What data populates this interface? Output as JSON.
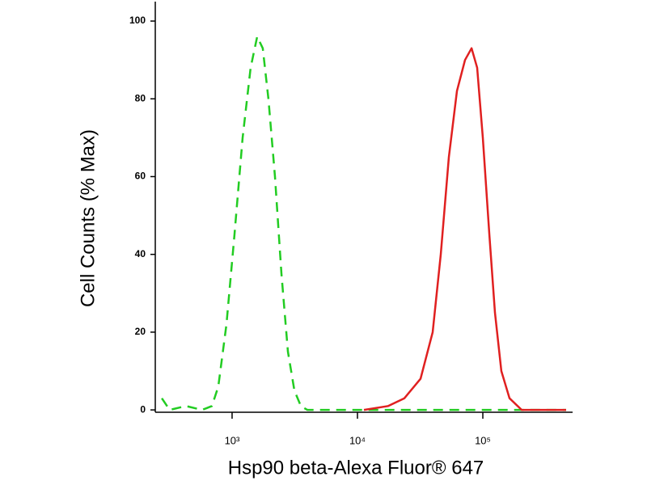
{
  "chart_data": {
    "type": "line",
    "x_label": "Hsp90 beta-Alexa Fluor® 647",
    "y_label": "Cell Counts (% Max)",
    "x_log": true,
    "xlim": [
      244,
      520000
    ],
    "ylim": [
      -0.6,
      105
    ],
    "xticks": [
      {
        "value": 1000,
        "label": "10³"
      },
      {
        "value": 10000,
        "label": "10⁴"
      },
      {
        "value": 100000,
        "label": "10⁵"
      }
    ],
    "yticks": [
      0,
      20,
      40,
      60,
      80,
      100
    ],
    "series": [
      {
        "color": "#22cc22",
        "dashed": true,
        "x": [
          275,
          318,
          429,
          577,
          690,
          776,
          902,
          1045,
          1213,
          1406,
          1585,
          1758,
          1950,
          2198,
          2475,
          2788,
          3139,
          3535,
          3981,
          11270,
          49770,
          462000
        ],
        "values": [
          3,
          0,
          1,
          0,
          1,
          6,
          22,
          45,
          70,
          88,
          96,
          93,
          80,
          60,
          35,
          15,
          5,
          1,
          0,
          0,
          0,
          0
        ]
      },
      {
        "color": "#e02020",
        "dashed": false,
        "x": [
          11270,
          17580,
          23660,
          31850,
          39810,
          46210,
          53580,
          62200,
          72110,
          81280,
          90160,
          100000,
          112700,
          125000,
          140600,
          163300,
          204200,
          462000
        ],
        "values": [
          0,
          1,
          3,
          8,
          20,
          40,
          65,
          82,
          90,
          93,
          88,
          70,
          45,
          25,
          10,
          3,
          0,
          0
        ]
      }
    ]
  }
}
